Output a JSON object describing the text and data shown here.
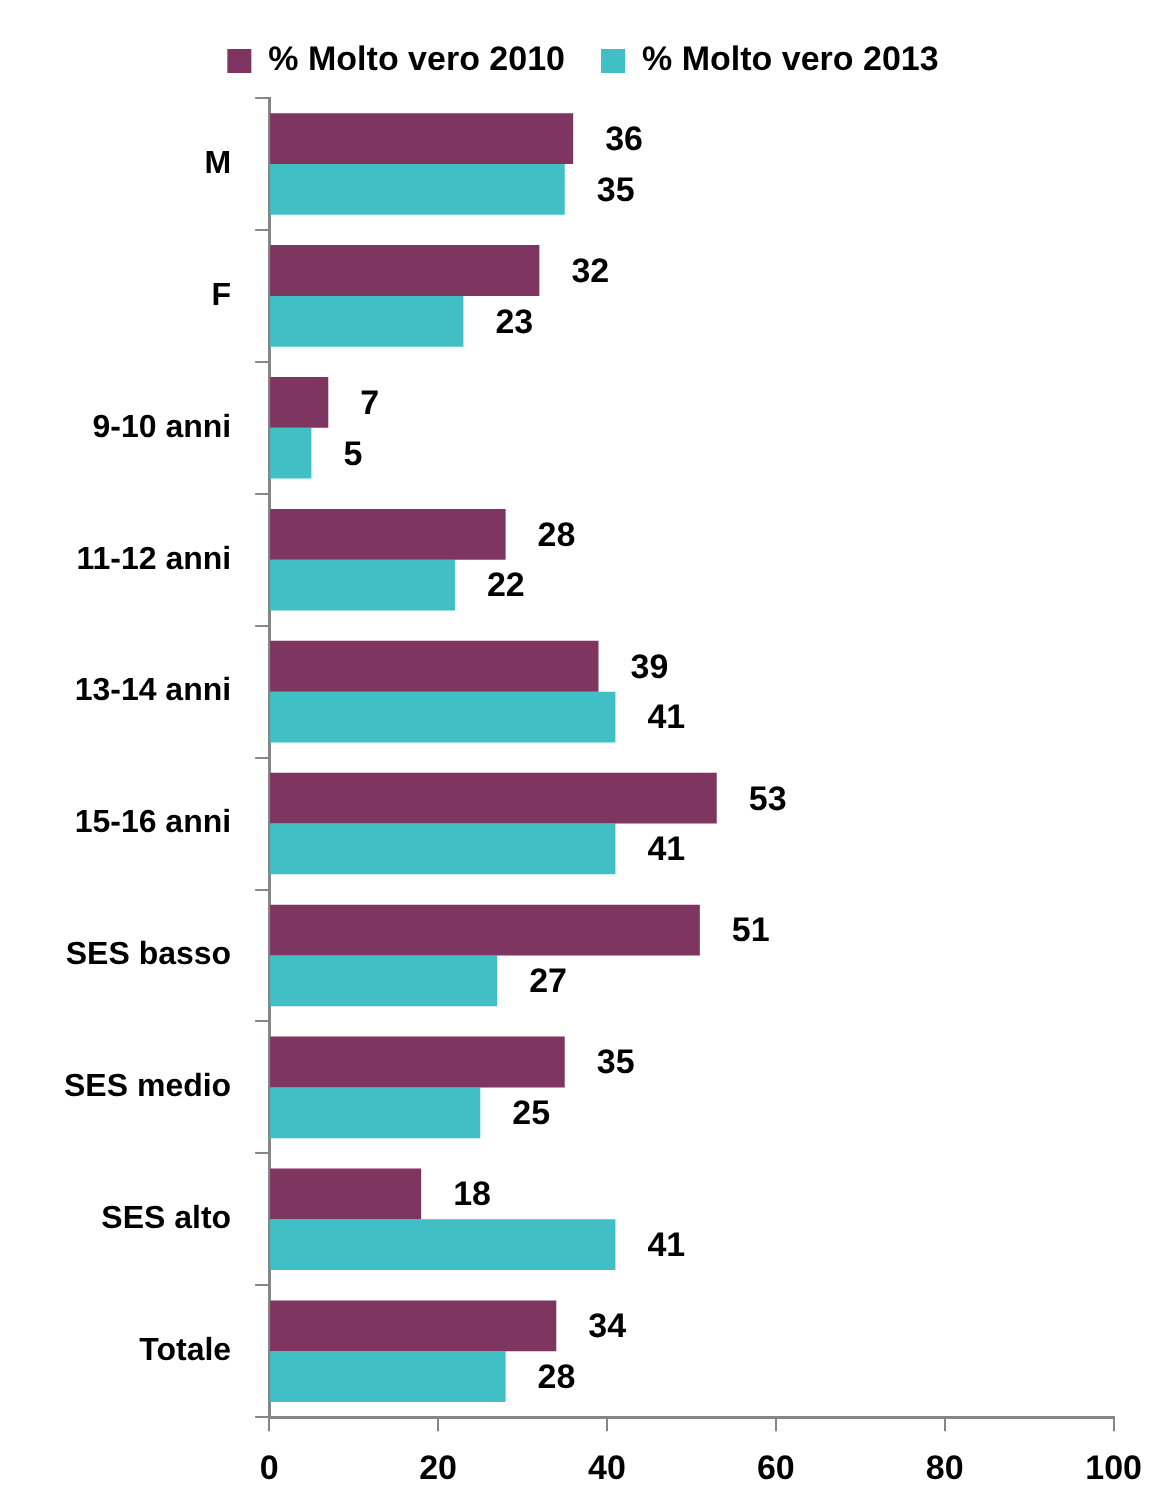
{
  "chart_data": {
    "type": "bar",
    "orientation": "horizontal",
    "legend": "top",
    "data_labels": true,
    "categories": [
      "M",
      "F",
      "9-10 anni",
      "11-12 anni",
      "13-14 anni",
      "15-16 anni",
      "SES basso",
      "SES medio",
      "SES alto",
      "Totale"
    ],
    "series": [
      {
        "name": "% Molto vero 2010",
        "color": "#7e3560",
        "values": [
          36,
          32,
          7,
          28,
          39,
          53,
          51,
          35,
          18,
          34
        ]
      },
      {
        "name": "% Molto vero 2013",
        "color": "#40c0c4",
        "values": [
          35,
          23,
          5,
          22,
          41,
          41,
          27,
          25,
          41,
          28
        ]
      }
    ],
    "xlim": [
      0,
      100
    ],
    "xticks": [
      0,
      20,
      40,
      60,
      80,
      100
    ]
  }
}
